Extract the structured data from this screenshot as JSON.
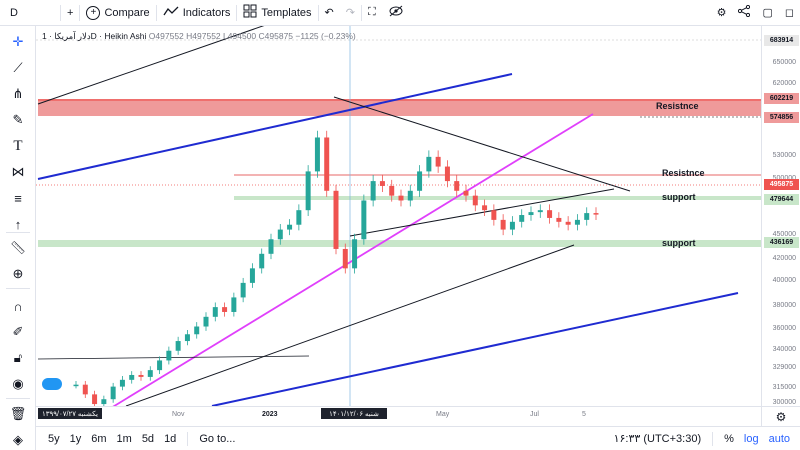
{
  "toolbar": {
    "symbol": "D",
    "compare_label": "Compare",
    "indicators_label": "Indicators",
    "templates_label": "Templates"
  },
  "legend": {
    "symbol": "دلار آمریکا",
    "interval": "1D",
    "chart_style": "Heikin Ashi",
    "open": "O497552",
    "high": "H497552",
    "low": "L494500",
    "close": "C495875",
    "change": "−1125 (−0.23%)"
  },
  "annotations": {
    "resistance_top": "Resistnce",
    "resistance_mid": "Resistnce",
    "support_mid": "support",
    "support_low": "support"
  },
  "price_axis": {
    "ticks": [
      "650000",
      "620000",
      "530000",
      "500000",
      "450000",
      "420000",
      "400000",
      "380000",
      "360000",
      "340000",
      "329000",
      "315000",
      "300000"
    ],
    "price_boxes": [
      {
        "value": "683914",
        "bg": "#e8e8e8"
      },
      {
        "value": "602219",
        "bg": "#ef9a9a"
      },
      {
        "value": "574856",
        "bg": "#ef9a9a"
      },
      {
        "value": "495875",
        "bg": "#ef5350"
      },
      {
        "value": "479644",
        "bg": "#c8e6c9"
      },
      {
        "value": "436169",
        "bg": "#c8e6c9"
      }
    ]
  },
  "time_axis": {
    "ticks": [
      "Nov",
      "2023",
      "May",
      "Jul",
      "5"
    ],
    "box_left": "یکشنبه ۱۳۹۹/۰۷/۲۷",
    "box_cross": "۱۴۰۱/۱۲/۰۶ شنبه"
  },
  "bottom": {
    "ranges": [
      "5y",
      "1y",
      "6m",
      "1m",
      "5d",
      "1d"
    ],
    "goto": "Go to...",
    "clock": "۱۶:۳۳ (UTC+3:30)",
    "pct": "%",
    "log": "log",
    "auto": "auto"
  },
  "colors": {
    "up": "#26a69a",
    "down": "#ef5350",
    "resistance_zone": "#ef9a9a",
    "support_zone": "#c8e6c9",
    "channel_blue": "#1f2bd1",
    "trend_magenta": "#e040fb",
    "crosshair": "#7eb6e0"
  },
  "chart_data": {
    "type": "candlestick",
    "style": "Heikin Ashi",
    "y_scale": "linear",
    "ylim": [
      298000,
      690000
    ],
    "series": [
      {
        "values": [
          320000,
          310000,
          300000,
          305000,
          318000,
          325000,
          330000,
          328000,
          335000,
          345000,
          355000,
          365000,
          372000,
          380000,
          390000,
          400000,
          395000,
          410000,
          425000,
          440000,
          455000,
          470000,
          480000,
          485000,
          500000,
          540000,
          575000,
          520000,
          460000,
          440000,
          470000,
          510000,
          530000,
          525000,
          515000,
          510000,
          520000,
          540000,
          555000,
          545000,
          530000,
          520000,
          515000,
          505000,
          500000,
          490000,
          480000,
          488000,
          495000,
          498000,
          500000,
          492000,
          488000,
          485000,
          490000,
          497000,
          495875
        ]
      }
    ]
  }
}
